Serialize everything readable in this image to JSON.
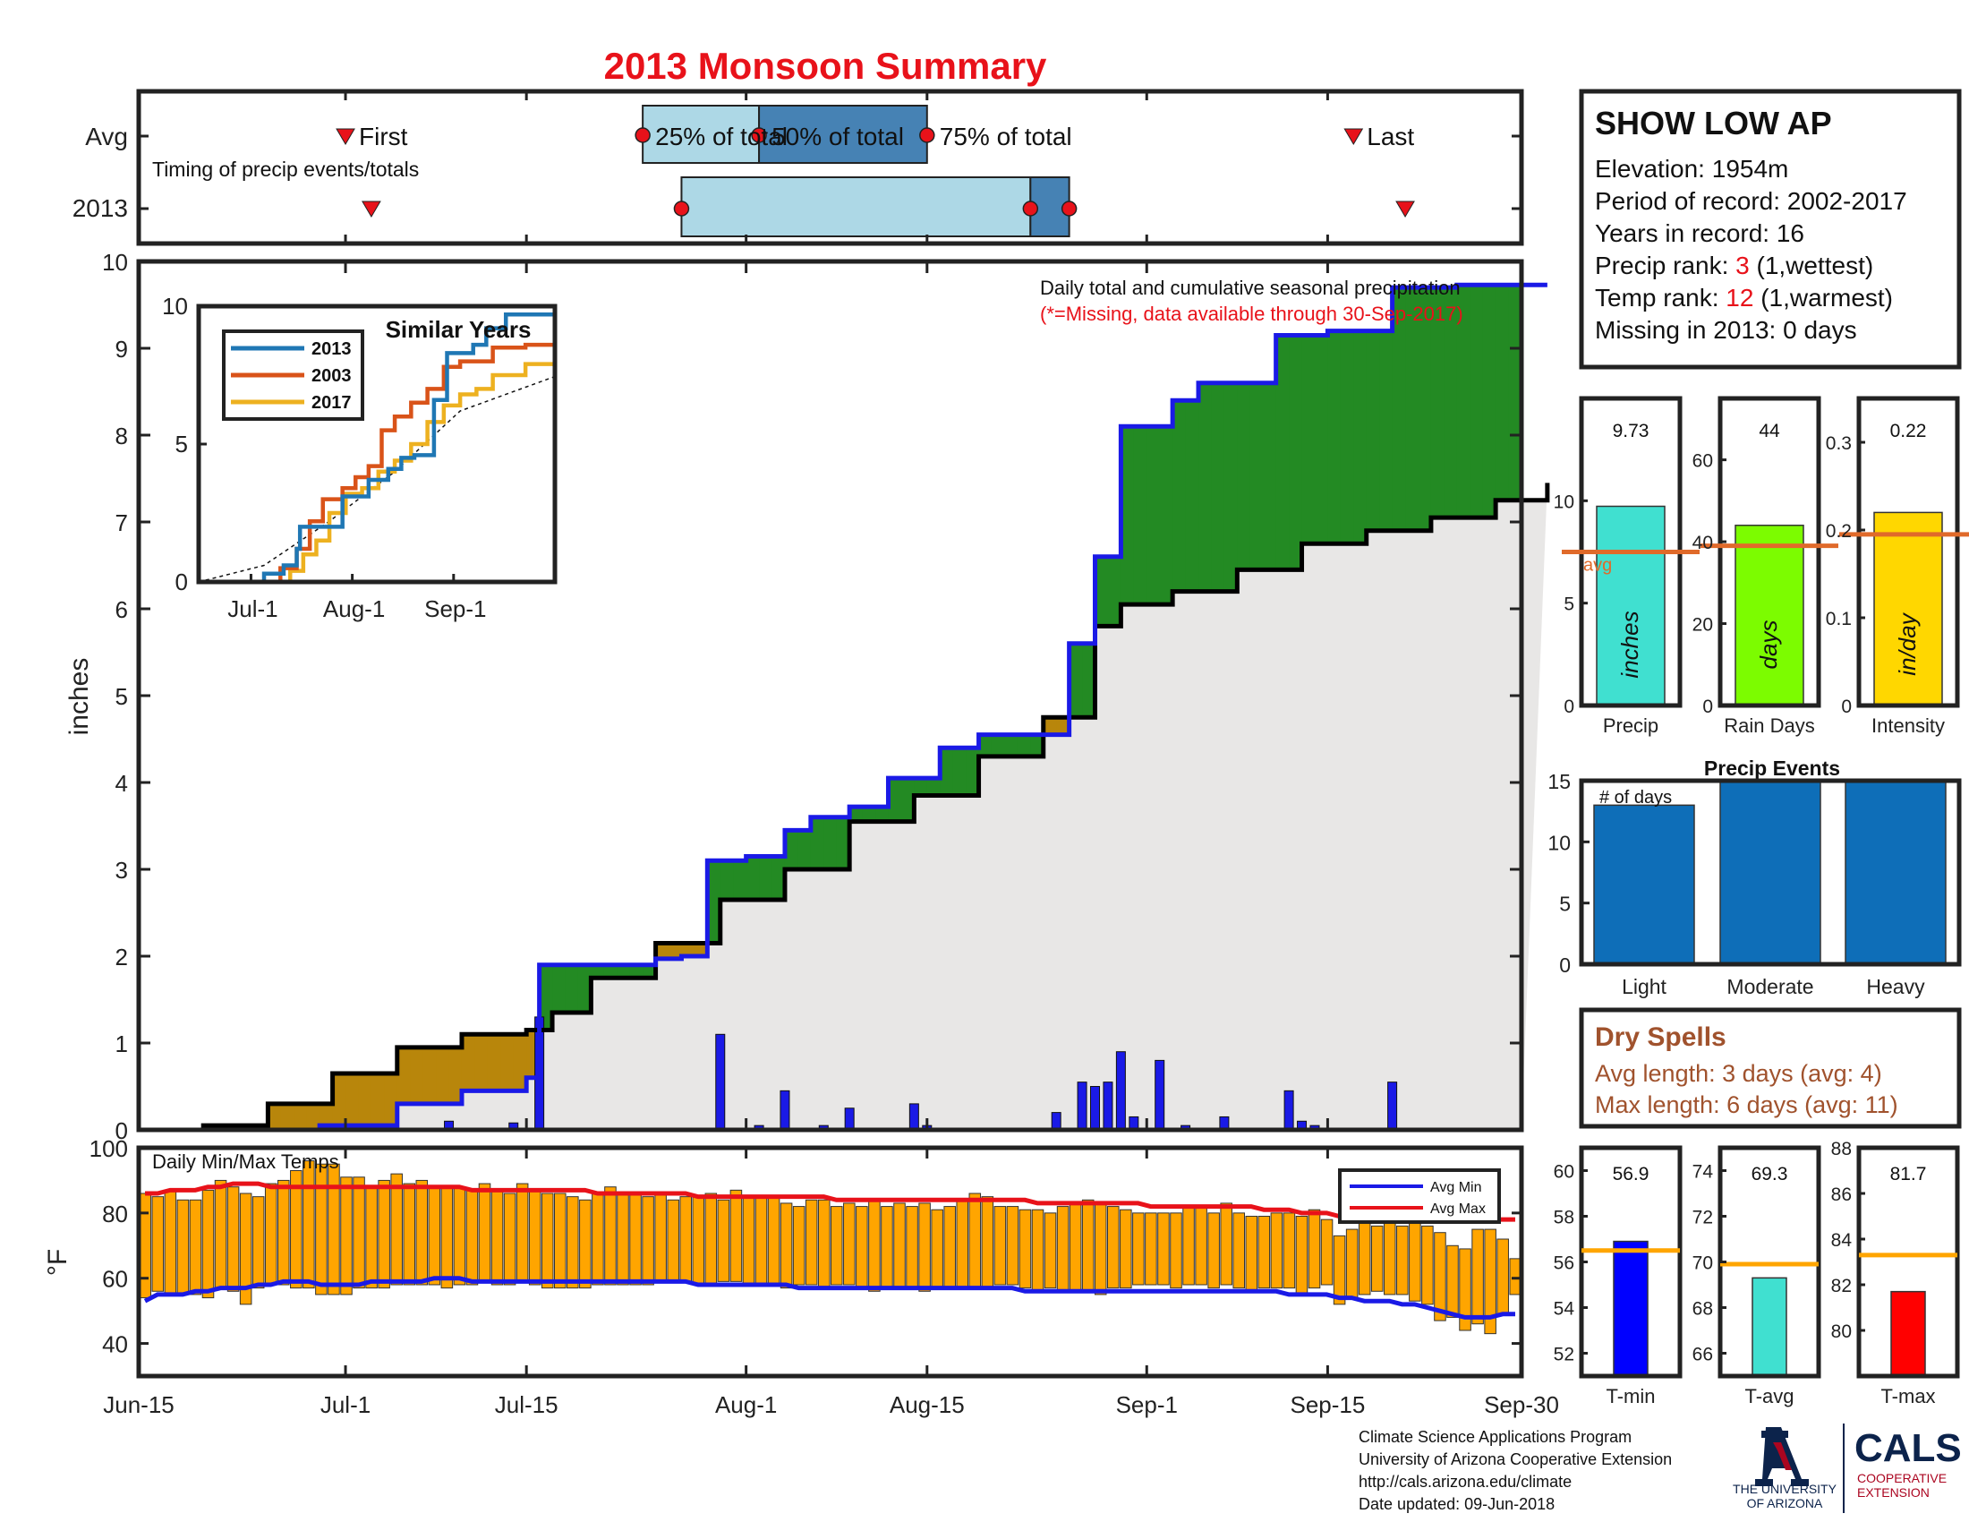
{
  "title": "2013 Monsoon Summary",
  "timing": {
    "avg_label": "Avg",
    "year_label": "2013",
    "note": "Timing of precip events/totals",
    "first_label": "First",
    "last_label": "Last",
    "p25_label": "25% of total",
    "p50_label": "50% of total",
    "p75_label": "75% of total",
    "avg": {
      "first": 16,
      "p25": 39,
      "p50": 48,
      "p75": 61,
      "last": 94
    },
    "year": {
      "first": 18,
      "p25": 42,
      "p50": 69,
      "p75": 72,
      "last": 98
    }
  },
  "station": {
    "name": "SHOW LOW AP",
    "elevation": "Elevation: 1954m",
    "period": "Period of record: 2002-2017",
    "years": "Years in record: 16",
    "precip_rank_label": "Precip rank: ",
    "precip_rank": "3",
    "precip_rank_suffix": " (1,wettest)",
    "temp_rank_label": "Temp rank: ",
    "temp_rank": "12",
    "temp_rank_suffix": " (1,warmest)",
    "missing": "Missing in 2013: 0 days"
  },
  "main_text": {
    "note1": "Daily total and cumulative seasonal precipitation",
    "note2": "(*=Missing, data available through 30-Sep-2017)",
    "ylabel": "inches"
  },
  "inset_text": {
    "title": "Similar Years",
    "x_ticks": [
      "Jul-1",
      "Aug-1",
      "Sep-1"
    ],
    "y_ticks": [
      "0",
      "5",
      "10"
    ]
  },
  "temps_text": {
    "label": "Daily Min/Max Temps",
    "ylabel": "°F",
    "legend_min": "Avg Min",
    "legend_max": "Avg Max",
    "y_ticks": [
      "40",
      "60",
      "80",
      "100"
    ]
  },
  "date_ticks": [
    "Jun-15",
    "Jul-1",
    "Jul-15",
    "Aug-1",
    "Aug-15",
    "Sep-1",
    "Sep-15",
    "Sep-30"
  ],
  "main_y_ticks": [
    "0",
    "1",
    "2",
    "3",
    "4",
    "5",
    "6",
    "7",
    "8",
    "9",
    "10"
  ],
  "stat_bars": [
    {
      "label": "Precip",
      "unit": "inches",
      "value_text": "9.73",
      "ticks": [
        "0",
        "5",
        "10"
      ],
      "avg_text": "avg"
    },
    {
      "label": "Rain Days",
      "unit": "days",
      "value_text": "44",
      "ticks": [
        "0",
        "20",
        "40",
        "60"
      ]
    },
    {
      "label": "Intensity",
      "unit": "in/day",
      "value_text": "0.22",
      "ticks": [
        "0",
        "0.1",
        "0.2",
        "0.3"
      ]
    }
  ],
  "events_text": {
    "title": "Precip Events",
    "ylabel": "# of days",
    "ticks": [
      "0",
      "5",
      "10",
      "15"
    ]
  },
  "dry_spells": {
    "title": "Dry Spells",
    "avg": "Avg length: 3 days (avg: 4)",
    "max": "Max length: 6 days (avg: 11)"
  },
  "temp_bars": [
    {
      "label": "T-min",
      "value_text": "56.9",
      "ticks": [
        "52",
        "54",
        "56",
        "58",
        "60"
      ]
    },
    {
      "label": "T-avg",
      "value_text": "69.3",
      "ticks": [
        "66",
        "68",
        "70",
        "72",
        "74"
      ]
    },
    {
      "label": "T-max",
      "value_text": "81.7",
      "ticks": [
        "80",
        "82",
        "84",
        "86",
        "88"
      ]
    }
  ],
  "footer": {
    "line1": "Climate Science Applications Program",
    "line2": "University of Arizona Cooperative Extension",
    "line3": "http://cals.arizona.edu/climate",
    "line4": " Date updated: 09-Jun-2018",
    "ua_line1": "THE UNIVERSITY",
    "ua_line2": "OF ARIZONA",
    "cals": "CALS",
    "cals_sub1": "COOPERATIVE",
    "cals_sub2": "EXTENSION"
  },
  "colors": {
    "title": "#e8121a",
    "obs_line": "#1a1ae6",
    "avg_fill": "#e8e7e6",
    "above": "#238a23",
    "below": "#b8860b",
    "temp_bar": "#ffa500",
    "avg_line": "#e06a2a"
  },
  "chart_data": [
    {
      "type": "area",
      "title": "Daily total and cumulative seasonal precipitation",
      "ylabel": "inches",
      "xlim": [
        "Jun-15",
        "Sep-30"
      ],
      "ylim": [
        0,
        10
      ],
      "series": [
        {
          "name": "2013",
          "x": [
            0,
            5,
            10,
            14,
            20,
            25,
            30,
            31,
            40,
            42,
            44,
            47,
            50,
            52,
            55,
            58,
            60,
            62,
            65,
            70,
            72,
            74,
            76,
            80,
            82,
            88,
            92,
            97,
            102,
            107,
            108,
            109
          ],
          "values": [
            0.0,
            0.0,
            0.0,
            0.05,
            0.3,
            0.45,
            0.6,
            1.9,
            1.97,
            2.0,
            3.1,
            3.15,
            3.45,
            3.6,
            3.72,
            4.05,
            4.05,
            4.4,
            4.55,
            4.55,
            5.6,
            6.6,
            8.1,
            8.4,
            8.6,
            9.15,
            9.2,
            9.7,
            9.73,
            9.73,
            9.73,
            9.73
          ]
        },
        {
          "name": "Avg",
          "x": [
            0,
            5,
            10,
            15,
            20,
            25,
            30,
            32,
            35,
            40,
            45,
            50,
            55,
            60,
            65,
            70,
            74,
            76,
            80,
            85,
            90,
            95,
            100,
            105,
            109
          ],
          "values": [
            0.0,
            0.05,
            0.3,
            0.65,
            0.95,
            1.1,
            1.15,
            1.35,
            1.75,
            2.15,
            2.65,
            3.0,
            3.55,
            3.85,
            4.3,
            4.75,
            5.8,
            6.05,
            6.2,
            6.45,
            6.75,
            6.9,
            7.05,
            7.25,
            7.45
          ]
        }
      ],
      "daily_precip": [
        {
          "x": 18,
          "value": 0.02
        },
        {
          "x": 24,
          "value": 0.1
        },
        {
          "x": 29,
          "value": 0.08
        },
        {
          "x": 31,
          "value": 1.3
        },
        {
          "x": 45,
          "value": 1.1
        },
        {
          "x": 48,
          "value": 0.05
        },
        {
          "x": 50,
          "value": 0.45
        },
        {
          "x": 53,
          "value": 0.05
        },
        {
          "x": 55,
          "value": 0.25
        },
        {
          "x": 60,
          "value": 0.3
        },
        {
          "x": 61,
          "value": 0.05
        },
        {
          "x": 71,
          "value": 0.2
        },
        {
          "x": 73,
          "value": 0.55
        },
        {
          "x": 74,
          "value": 0.5
        },
        {
          "x": 75,
          "value": 0.55
        },
        {
          "x": 76,
          "value": 0.9
        },
        {
          "x": 77,
          "value": 0.15
        },
        {
          "x": 79,
          "value": 0.8
        },
        {
          "x": 81,
          "value": 0.05
        },
        {
          "x": 84,
          "value": 0.15
        },
        {
          "x": 89,
          "value": 0.45
        },
        {
          "x": 90,
          "value": 0.1
        },
        {
          "x": 91,
          "value": 0.05
        },
        {
          "x": 97,
          "value": 0.55
        },
        {
          "x": 104,
          "value": 0.02
        }
      ]
    },
    {
      "type": "line",
      "title": "Similar Years",
      "x_ticks": [
        "Jul-1",
        "Aug-1",
        "Sep-1"
      ],
      "ylim": [
        0,
        10
      ],
      "series": [
        {
          "name": "2013",
          "color": "#1f77b4",
          "x": [
            0,
            14,
            20,
            26,
            30,
            31,
            40,
            44,
            52,
            58,
            62,
            66,
            72,
            76,
            84,
            88,
            94,
            109
          ],
          "values": [
            0,
            0,
            0.3,
            0.6,
            1.2,
            2.0,
            2.0,
            3.1,
            3.7,
            4.1,
            4.5,
            4.6,
            6.6,
            8.3,
            8.6,
            9.2,
            9.7,
            9.7
          ]
        },
        {
          "name": "2003",
          "color": "#d95319",
          "x": [
            0,
            18,
            25,
            30,
            34,
            38,
            44,
            48,
            52,
            56,
            60,
            65,
            70,
            75,
            80,
            90,
            100,
            109
          ],
          "values": [
            0,
            0,
            0.5,
            1.2,
            2.2,
            3.0,
            3.4,
            3.8,
            4.2,
            5.5,
            6.0,
            6.5,
            7.0,
            7.8,
            8.0,
            8.5,
            8.6,
            8.6
          ]
        },
        {
          "name": "2017",
          "color": "#edb120",
          "x": [
            0,
            20,
            28,
            32,
            36,
            40,
            45,
            50,
            55,
            60,
            65,
            70,
            75,
            80,
            85,
            90,
            100,
            109
          ],
          "values": [
            0,
            0,
            0.4,
            1.0,
            1.5,
            2.5,
            3.2,
            3.4,
            4.0,
            4.4,
            5.0,
            5.8,
            6.4,
            6.8,
            7.0,
            7.5,
            7.9,
            8.0
          ]
        },
        {
          "name": "Avg",
          "x": [
            0,
            20,
            40,
            60,
            80,
            109
          ],
          "values": [
            0,
            0.6,
            2.2,
            4.0,
            6.2,
            7.45
          ]
        }
      ]
    },
    {
      "type": "bar",
      "title": "Daily Min/Max Temps",
      "ylabel": "°F",
      "ylim": [
        30,
        100
      ],
      "daily_min": [
        54,
        56,
        55,
        55,
        55,
        54,
        57,
        56,
        52,
        57,
        58,
        58,
        57,
        57,
        55,
        55,
        55,
        57,
        57,
        57,
        58,
        58,
        58,
        58,
        57,
        58,
        58,
        59,
        58,
        58,
        59,
        58,
        57,
        57,
        57,
        57,
        58,
        58,
        58,
        58,
        58,
        59,
        59,
        59,
        58,
        58,
        59,
        59,
        58,
        58,
        58,
        57,
        58,
        58,
        57,
        58,
        58,
        57,
        56,
        57,
        57,
        57,
        56,
        57,
        57,
        57,
        57,
        57,
        58,
        58,
        57,
        56,
        57,
        56,
        56,
        56,
        55,
        57,
        57,
        58,
        58,
        58,
        57,
        58,
        58,
        57,
        58,
        57,
        56,
        57,
        57,
        57,
        55,
        57,
        58,
        52,
        54,
        55,
        56,
        55,
        55,
        53,
        52,
        47,
        48,
        44,
        46,
        43,
        49,
        55
      ],
      "daily_max": [
        86,
        85,
        87,
        84,
        84,
        87,
        90,
        88,
        86,
        85,
        89,
        90,
        93,
        96,
        95,
        95,
        91,
        91,
        88,
        90,
        92,
        89,
        90,
        88,
        88,
        88,
        87,
        89,
        87,
        86,
        89,
        87,
        86,
        86,
        85,
        84,
        86,
        88,
        86,
        86,
        85,
        86,
        84,
        85,
        85,
        86,
        84,
        87,
        85,
        85,
        85,
        83,
        82,
        84,
        84,
        82,
        83,
        82,
        84,
        82,
        83,
        82,
        83,
        81,
        82,
        84,
        86,
        85,
        82,
        82,
        81,
        81,
        80,
        82,
        83,
        84,
        83,
        82,
        81,
        80,
        80,
        80,
        80,
        82,
        82,
        80,
        83,
        80,
        79,
        79,
        80,
        80,
        79,
        81,
        78,
        73,
        75,
        78,
        76,
        80,
        76,
        78,
        76,
        74,
        70,
        69,
        75,
        75,
        72,
        66
      ],
      "avg_min": [
        53,
        55,
        55,
        55,
        56,
        56,
        57,
        57,
        57,
        58,
        58,
        59,
        59,
        59,
        58,
        58,
        58,
        58,
        59,
        59,
        59,
        59,
        59,
        60,
        60,
        60,
        59,
        59,
        59,
        59,
        59,
        59,
        59,
        59,
        59,
        59,
        59,
        59,
        59,
        59,
        59,
        59,
        59,
        59,
        58,
        58,
        58,
        58,
        58,
        58,
        58,
        58,
        57,
        57,
        57,
        57,
        57,
        57,
        57,
        57,
        57,
        57,
        57,
        57,
        57,
        57,
        57,
        57,
        57,
        57,
        56,
        56,
        56,
        56,
        56,
        56,
        56,
        56,
        56,
        56,
        56,
        56,
        56,
        56,
        56,
        56,
        56,
        56,
        56,
        56,
        56,
        55,
        55,
        55,
        55,
        54,
        54,
        53,
        53,
        53,
        52,
        52,
        51,
        50,
        49,
        48,
        48,
        48,
        49,
        49
      ],
      "avg_max": [
        86,
        86,
        87,
        87,
        87,
        88,
        88,
        89,
        89,
        89,
        88,
        88,
        88,
        88,
        88,
        88,
        88,
        88,
        88,
        88,
        88,
        88,
        88,
        88,
        88,
        88,
        87,
        87,
        87,
        87,
        87,
        87,
        87,
        87,
        87,
        87,
        86,
        86,
        86,
        86,
        86,
        86,
        86,
        86,
        85,
        85,
        85,
        85,
        85,
        85,
        85,
        85,
        85,
        85,
        85,
        84,
        84,
        84,
        84,
        84,
        84,
        84,
        84,
        84,
        84,
        84,
        84,
        84,
        84,
        84,
        84,
        83,
        83,
        83,
        83,
        83,
        83,
        83,
        83,
        83,
        82,
        82,
        82,
        82,
        82,
        82,
        82,
        82,
        82,
        81,
        81,
        81,
        80,
        80,
        80,
        79,
        79,
        79,
        79,
        79,
        79,
        78,
        78,
        78,
        78,
        78,
        78,
        78,
        78,
        78
      ]
    },
    {
      "type": "bar",
      "title": "Precip / Rain Days / Intensity",
      "categories": [
        "Precip",
        "Rain Days",
        "Intensity"
      ],
      "values": [
        9.73,
        44,
        0.22
      ],
      "averages": [
        7.5,
        39,
        0.195
      ],
      "ylims": [
        [
          0,
          15
        ],
        [
          0,
          75
        ],
        [
          0,
          0.35
        ]
      ]
    },
    {
      "type": "bar",
      "title": "Precip Events",
      "categories": [
        "Light",
        "Moderate",
        "Heavy"
      ],
      "values": [
        13,
        15,
        15
      ],
      "ylim": [
        0,
        15
      ]
    },
    {
      "type": "bar",
      "title": "Temperature",
      "categories": [
        "T-min",
        "T-avg",
        "T-max"
      ],
      "values": [
        56.9,
        69.3,
        81.7
      ],
      "averages": [
        56.5,
        69.9,
        83.3
      ],
      "ylims": [
        [
          51,
          61
        ],
        [
          65,
          75
        ],
        [
          78,
          88
        ]
      ]
    }
  ]
}
